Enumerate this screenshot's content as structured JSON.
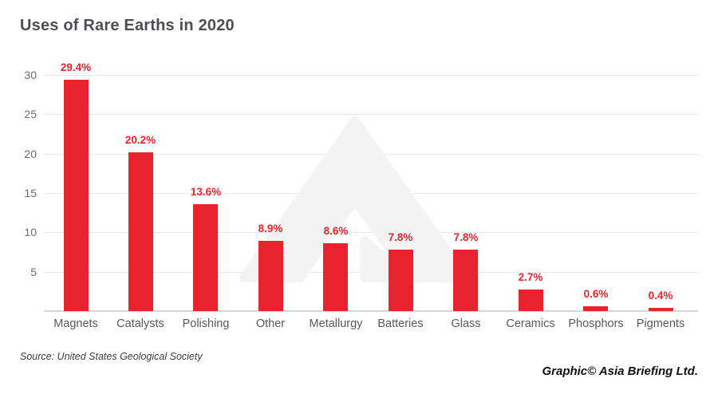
{
  "header": {
    "title": "Uses of Rare Earths in 2020"
  },
  "chart_data": {
    "type": "bar",
    "title": "Uses of Rare Earths in 2020",
    "categories": [
      "Magnets",
      "Catalysts",
      "Polishing",
      "Other",
      "Metallurgy",
      "Batteries",
      "Glass",
      "Ceramics",
      "Phosphors",
      "Pigments"
    ],
    "values": [
      29.4,
      20.2,
      13.6,
      8.9,
      8.6,
      7.8,
      7.8,
      2.7,
      0.6,
      0.4
    ],
    "value_labels": [
      "29.4%",
      "20.2%",
      "13.6%",
      "8.9%",
      "8.6%",
      "7.8%",
      "7.8%",
      "2.7%",
      "0.6%",
      "0.4%"
    ],
    "xlabel": "",
    "ylabel": "",
    "ylim": [
      0,
      30
    ],
    "yticks": [
      5,
      10,
      15,
      20,
      25,
      30
    ],
    "grid": true,
    "legend": false,
    "bar_color": "#e8232d",
    "value_label_color": "#e8232d"
  },
  "watermark": {
    "name": "asia-briefing-arrow-logo",
    "color": "#f3f3f4"
  },
  "footer": {
    "source": "Source: United States Geological Society",
    "credit": "Graphic© Asia Briefing Ltd."
  },
  "colors": {
    "title_text": "#4c4d55",
    "axis_text": "#6b6c70",
    "category_text": "#57585c",
    "gridline": "#e7e7e8",
    "baseline": "#d6d6d8",
    "background": "#ffffff"
  }
}
